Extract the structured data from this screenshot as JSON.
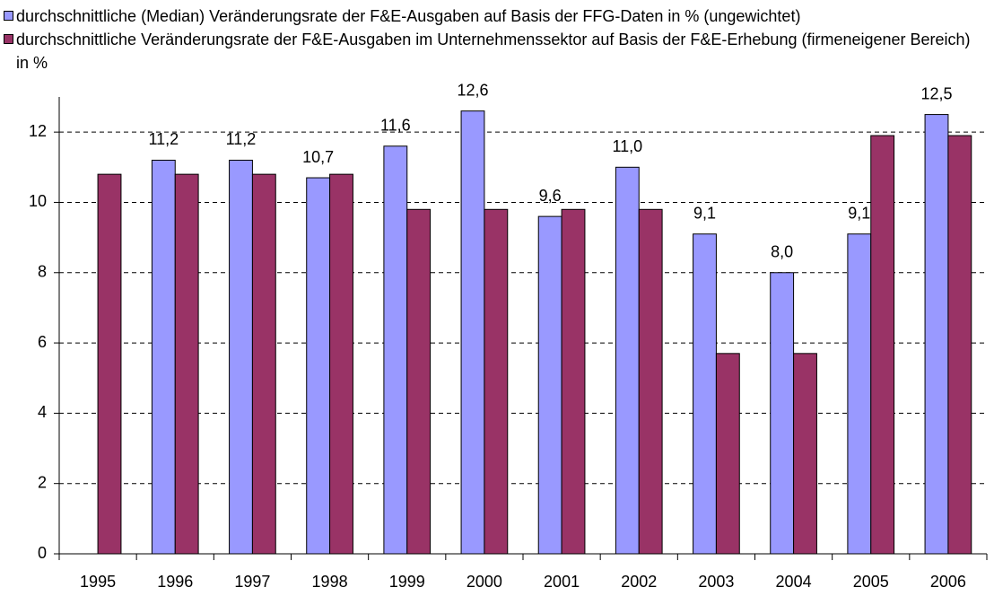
{
  "chart_data": {
    "type": "bar",
    "categories": [
      "1995",
      "1996",
      "1997",
      "1998",
      "1999",
      "2000",
      "2001",
      "2002",
      "2003",
      "2004",
      "2005",
      "2006"
    ],
    "series": [
      {
        "name": "durchschnittliche (Median) Veränderungsrate der F&E-Ausgaben auf Basis der FFG-Daten in % (ungewichtet)",
        "color": "#9999ff",
        "values": [
          null,
          11.2,
          11.2,
          10.7,
          11.6,
          12.6,
          9.6,
          11.0,
          9.1,
          8.0,
          9.1,
          12.5
        ],
        "value_labels": [
          null,
          "11,2",
          "11,2",
          "10,7",
          "11,6",
          "12,6",
          "9,6",
          "11,0",
          "9,1",
          "8,0",
          "9,1",
          "12,5"
        ]
      },
      {
        "name": "durchschnittliche Veränderungsrate der F&E-Ausgaben im Unternehmenssektor auf Basis der F&E-Erhebung (firmeneigener Bereich) in %",
        "color": "#993366",
        "values": [
          10.8,
          10.8,
          10.8,
          10.8,
          9.8,
          9.8,
          9.8,
          9.8,
          5.7,
          5.7,
          11.9,
          11.9
        ]
      }
    ],
    "ylim": [
      0,
      13
    ],
    "yticks": [
      0,
      2,
      4,
      6,
      8,
      10,
      12
    ],
    "grid": true
  }
}
